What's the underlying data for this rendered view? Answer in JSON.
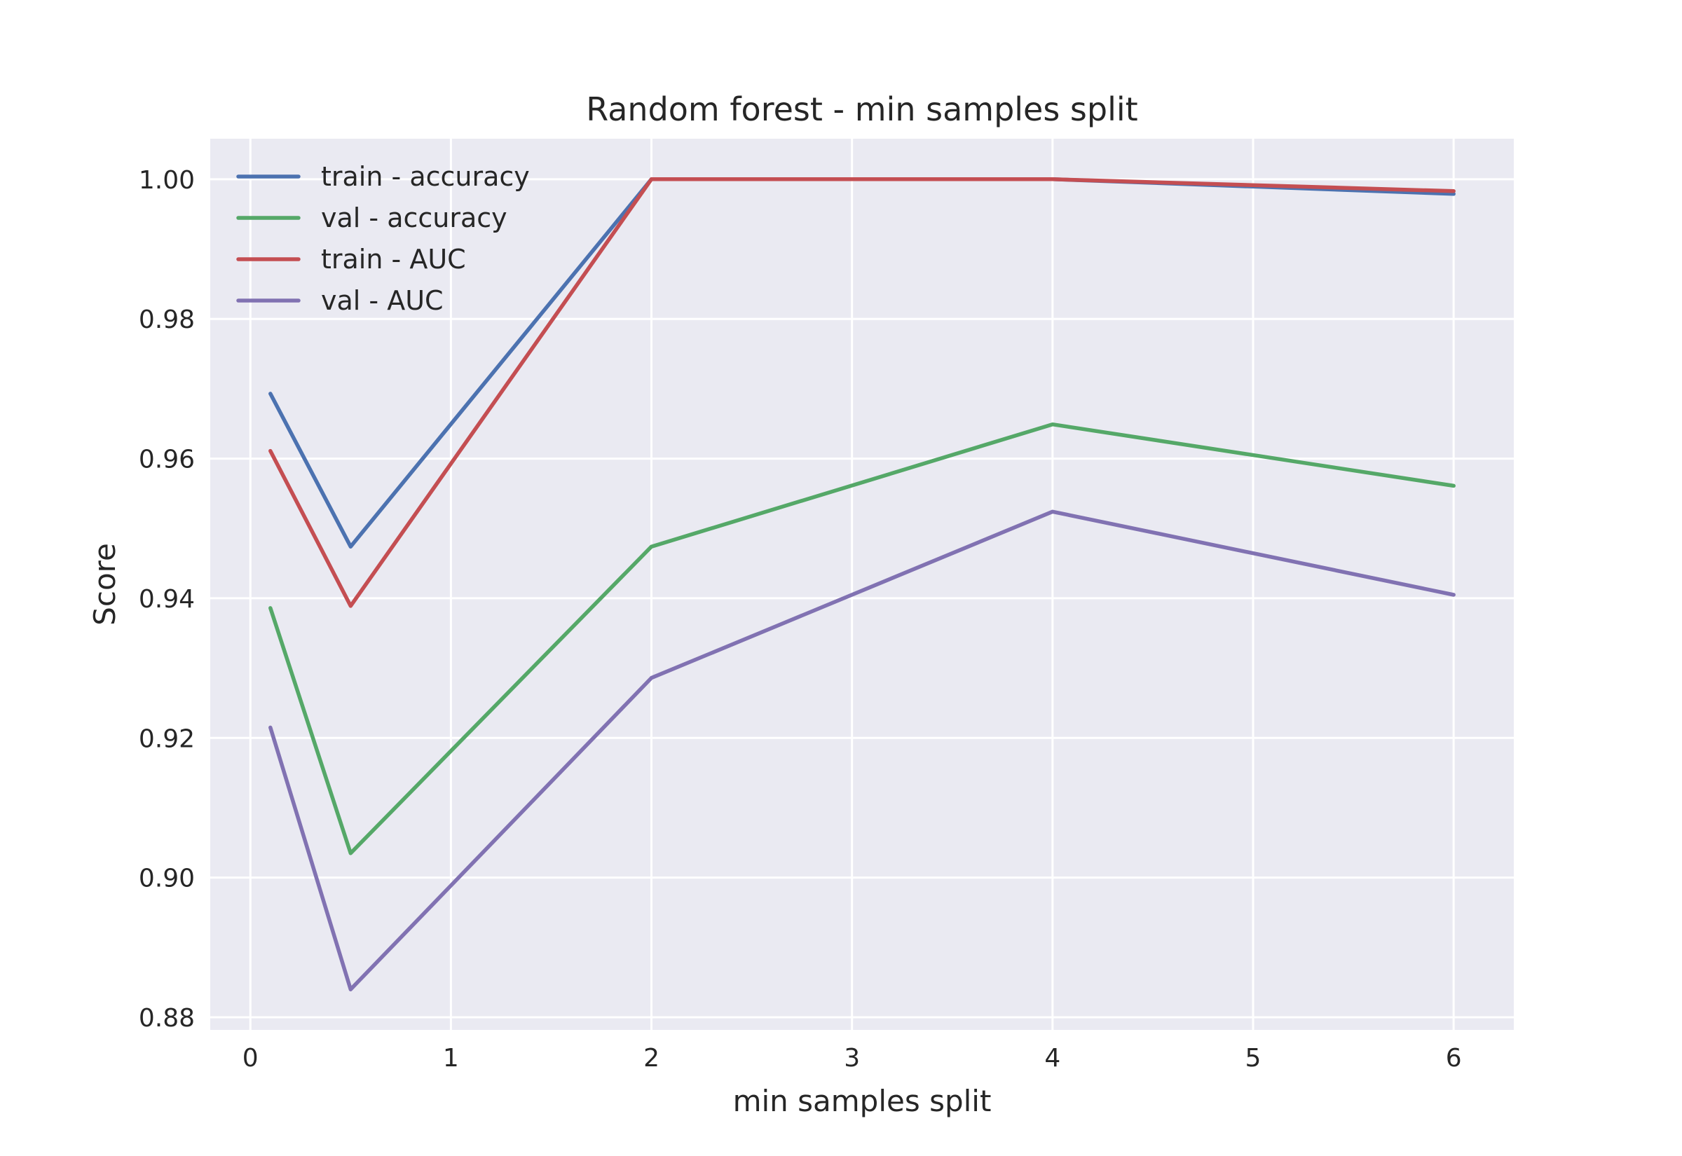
{
  "chart_data": {
    "type": "line",
    "title": "Random forest - min samples split",
    "xlabel": "min samples split",
    "ylabel": "Score",
    "xlim": [
      -0.2,
      6.3
    ],
    "ylim": [
      0.8782,
      1.0058
    ],
    "xticks": [
      0,
      1,
      2,
      3,
      4,
      5,
      6
    ],
    "xtick_labels": [
      "0",
      "1",
      "2",
      "3",
      "4",
      "5",
      "6"
    ],
    "yticks": [
      0.88,
      0.9,
      0.92,
      0.94,
      0.96,
      0.98,
      1.0
    ],
    "ytick_labels": [
      "0.88",
      "0.90",
      "0.92",
      "0.94",
      "0.96",
      "0.98",
      "1.00"
    ],
    "grid": true,
    "legend_position": "upper-left",
    "x": [
      0.1,
      0.5,
      2,
      4,
      6
    ],
    "series": [
      {
        "name": "train - accuracy",
        "color": "#4C72B0",
        "values": [
          0.9693,
          0.9474,
          1.0,
          1.0,
          0.9979
        ]
      },
      {
        "name": "val - accuracy",
        "color": "#55A868",
        "values": [
          0.9386,
          0.9035,
          0.9474,
          0.9649,
          0.9561
        ]
      },
      {
        "name": "train - AUC",
        "color": "#C44E52",
        "values": [
          0.9611,
          0.9389,
          1.0,
          1.0,
          0.9983
        ]
      },
      {
        "name": "val - AUC",
        "color": "#8172B2",
        "values": [
          0.9215,
          0.884,
          0.9286,
          0.9524,
          0.9405
        ]
      }
    ]
  }
}
